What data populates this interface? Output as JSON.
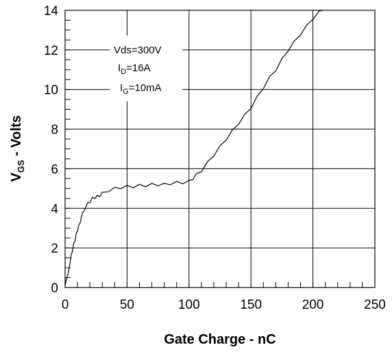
{
  "chart_data": {
    "type": "line",
    "xlabel": "Gate Charge - nC",
    "ylabel": {
      "main": "V",
      "sub": "GS",
      "rest": " - Volts"
    },
    "xlim": [
      0,
      250
    ],
    "ylim": [
      0,
      14
    ],
    "x_ticks": [
      0,
      50,
      100,
      150,
      200,
      250
    ],
    "y_ticks": [
      0,
      2,
      4,
      6,
      8,
      10,
      12,
      14
    ],
    "x_minor_step": 10,
    "y_minor_step": 0.5,
    "grid": true,
    "annotations": [
      {
        "main": "Vds=300V",
        "sub": "",
        "rest": ""
      },
      {
        "main": "I",
        "sub": "D",
        "rest": "=16A"
      },
      {
        "main": "I",
        "sub": "G",
        "rest": "=10mA"
      }
    ],
    "series": [
      {
        "color": "#000000",
        "x": [
          0,
          1,
          2,
          3,
          4,
          5,
          6,
          7,
          8,
          9,
          10,
          11,
          12,
          14,
          16,
          18,
          20,
          22,
          24,
          26,
          28,
          30,
          35,
          40,
          45,
          50,
          55,
          60,
          65,
          70,
          75,
          80,
          85,
          90,
          95,
          100,
          103,
          106,
          110,
          115,
          120,
          125,
          130,
          135,
          140,
          145,
          150,
          155,
          160,
          165,
          170,
          175,
          180,
          185,
          190,
          195,
          200,
          205,
          208
        ],
        "y": [
          0.1,
          0.4,
          0.6,
          0.9,
          1.3,
          1.6,
          1.9,
          2.2,
          2.4,
          2.7,
          2.9,
          3.1,
          3.3,
          3.7,
          4.0,
          4.2,
          4.35,
          4.5,
          4.55,
          4.6,
          4.65,
          4.75,
          4.9,
          5.0,
          5.05,
          5.1,
          5.1,
          5.15,
          5.15,
          5.2,
          5.2,
          5.2,
          5.25,
          5.3,
          5.3,
          5.35,
          5.5,
          5.7,
          5.9,
          6.3,
          6.7,
          7.1,
          7.5,
          7.9,
          8.3,
          8.7,
          9.1,
          9.6,
          10.1,
          10.6,
          11.0,
          11.5,
          12.0,
          12.4,
          12.8,
          13.2,
          13.6,
          13.9,
          14.0
        ]
      }
    ]
  }
}
